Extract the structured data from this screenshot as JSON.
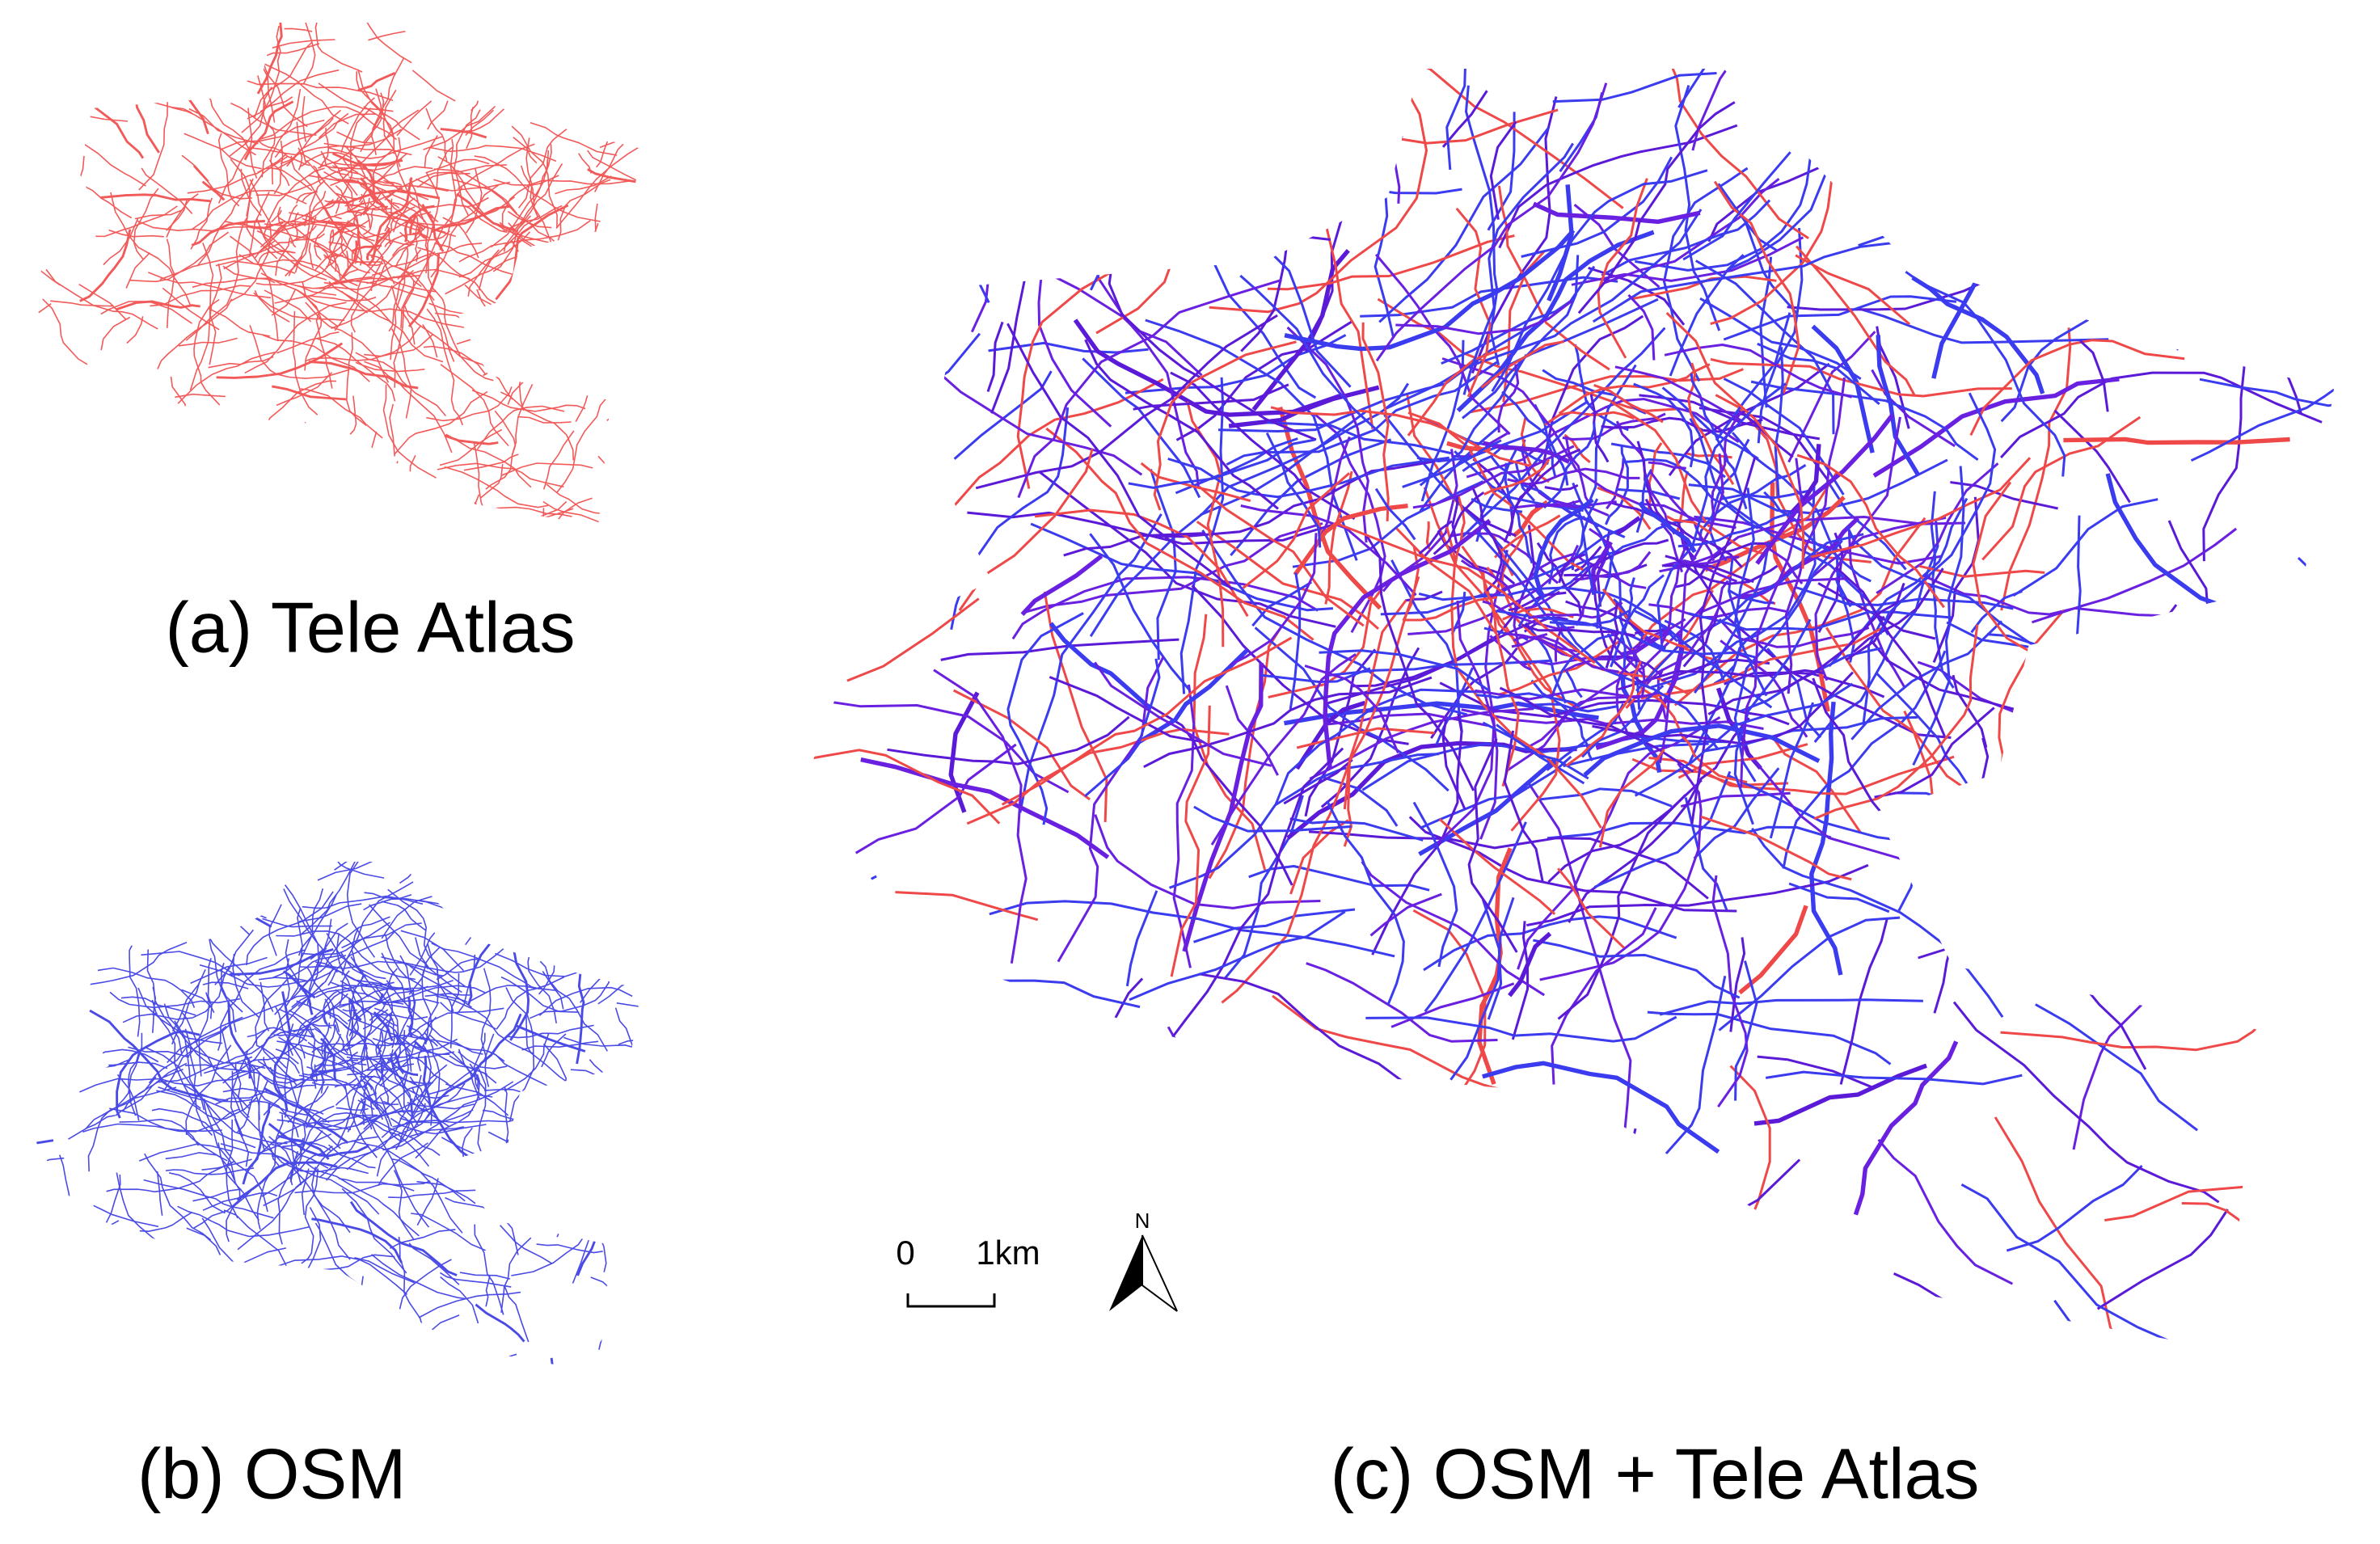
{
  "panels": [
    {
      "caption": "(a) Tele Atlas"
    },
    {
      "caption": "(b) OSM"
    },
    {
      "caption": "(c) OSM + Tele Atlas"
    }
  ],
  "scale_bar": {
    "labels": [
      "0",
      "1km"
    ]
  },
  "north_arrow": {
    "label": "N"
  }
}
